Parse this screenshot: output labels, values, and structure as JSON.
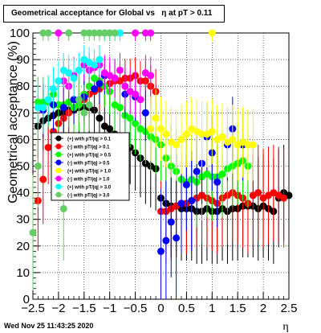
{
  "title": "Geometrical acceptance for Global vs   η at pT > 0.11",
  "footer": "Wed Nov 25 11:43:25 2020",
  "chart_data": {
    "type": "scatter",
    "xlabel": "η",
    "ylabel": "Geometrical acceptance (%)",
    "xlim": [
      -2.5,
      2.5
    ],
    "ylim": [
      0,
      100
    ],
    "xticks": [
      "−2.5",
      "−2",
      "−1.5",
      "−1",
      "−0.5",
      "0",
      "0.5",
      "1",
      "1.5",
      "2",
      "2.5"
    ],
    "yticks": [
      "0",
      "10",
      "20",
      "30",
      "40",
      "50",
      "60",
      "70",
      "80",
      "90",
      "100"
    ],
    "grid": true,
    "legend_position": "left-middle",
    "series": [
      {
        "name": "(+) with pT/|q| > 0.1",
        "color": "#000000",
        "points": [
          [
            -2.4,
            65
          ],
          [
            -2.3,
            67
          ],
          [
            -2.2,
            68
          ],
          [
            -2.1,
            69
          ],
          [
            -2.0,
            70
          ],
          [
            -1.9,
            70
          ],
          [
            -1.8,
            71
          ],
          [
            -1.7,
            71
          ],
          [
            -1.6,
            72
          ],
          [
            -1.5,
            72
          ],
          [
            -1.4,
            72
          ],
          [
            -1.3,
            71
          ],
          [
            -1.2,
            68
          ],
          [
            -1.1,
            65
          ],
          [
            -1.0,
            64
          ],
          [
            -0.9,
            62
          ],
          [
            -0.8,
            60
          ],
          [
            -0.7,
            58
          ],
          [
            -0.6,
            57
          ],
          [
            -0.5,
            55
          ],
          [
            -0.4,
            53
          ],
          [
            -0.3,
            51
          ],
          [
            -0.2,
            50
          ],
          [
            -0.1,
            49
          ],
          [
            0.0,
            38
          ],
          [
            0.1,
            36
          ],
          [
            0.2,
            35
          ],
          [
            0.3,
            35
          ],
          [
            0.4,
            34
          ],
          [
            0.5,
            34
          ],
          [
            0.6,
            34
          ],
          [
            0.7,
            33
          ],
          [
            0.8,
            33
          ],
          [
            0.9,
            34
          ],
          [
            1.0,
            33
          ],
          [
            1.1,
            33
          ],
          [
            1.2,
            34
          ],
          [
            1.3,
            33
          ],
          [
            1.4,
            34
          ],
          [
            1.5,
            34
          ],
          [
            1.6,
            35
          ],
          [
            1.7,
            35
          ],
          [
            1.8,
            35
          ],
          [
            1.9,
            34
          ],
          [
            2.0,
            35
          ],
          [
            2.1,
            34
          ],
          [
            2.2,
            33
          ],
          [
            2.3,
            38
          ],
          [
            2.4,
            40
          ],
          [
            2.5,
            39
          ]
        ]
      },
      {
        "name": "(-) with pT/|q| > 0.1",
        "color": "#ff0000",
        "points": [
          [
            -2.4,
            37
          ],
          [
            -2.3,
            45
          ],
          [
            -2.2,
            57
          ],
          [
            -2.1,
            63
          ],
          [
            -2.0,
            66
          ],
          [
            -1.9,
            68
          ],
          [
            -1.8,
            70
          ],
          [
            -1.7,
            72
          ],
          [
            -1.6,
            74
          ],
          [
            -1.5,
            75
          ],
          [
            -1.4,
            77
          ],
          [
            -1.3,
            78
          ],
          [
            -1.2,
            79
          ],
          [
            -1.1,
            80
          ],
          [
            -1.0,
            81
          ],
          [
            -0.9,
            82
          ],
          [
            -0.8,
            82
          ],
          [
            -0.7,
            83
          ],
          [
            -0.6,
            83
          ],
          [
            -0.5,
            84
          ],
          [
            -0.4,
            82
          ],
          [
            -0.3,
            82
          ],
          [
            -0.2,
            80
          ],
          [
            -0.1,
            78
          ],
          [
            0.0,
            33
          ],
          [
            0.1,
            33
          ],
          [
            0.2,
            34
          ],
          [
            0.3,
            35
          ],
          [
            0.4,
            36
          ],
          [
            0.5,
            36
          ],
          [
            0.6,
            37
          ],
          [
            0.7,
            38
          ],
          [
            0.8,
            39
          ],
          [
            0.9,
            38
          ],
          [
            1.0,
            37
          ],
          [
            1.1,
            36
          ],
          [
            1.2,
            38
          ],
          [
            1.3,
            39
          ],
          [
            1.4,
            40
          ],
          [
            1.5,
            39
          ],
          [
            1.6,
            38
          ],
          [
            1.7,
            36
          ],
          [
            1.8,
            39
          ],
          [
            1.9,
            40
          ],
          [
            2.0,
            38
          ],
          [
            2.1,
            39
          ],
          [
            2.2,
            40
          ],
          [
            2.3,
            39
          ],
          [
            2.4,
            38
          ]
        ]
      },
      {
        "name": "(+) with pT/|q| > 0.5",
        "color": "#00ff00",
        "points": [
          [
            -2.4,
            74
          ],
          [
            -2.3,
            74
          ],
          [
            -2.2,
            74
          ],
          [
            -2.1,
            77
          ],
          [
            -2.0,
            73
          ],
          [
            -1.9,
            73
          ],
          [
            -1.8,
            74
          ],
          [
            -1.7,
            72
          ],
          [
            -1.6,
            73
          ],
          [
            -1.5,
            77
          ],
          [
            -1.4,
            80
          ],
          [
            -1.3,
            83
          ],
          [
            -1.2,
            82
          ],
          [
            -1.1,
            80
          ],
          [
            -1.0,
            78
          ],
          [
            -0.9,
            73
          ],
          [
            -0.8,
            72
          ],
          [
            -0.7,
            69
          ],
          [
            -0.6,
            68
          ],
          [
            -0.5,
            66
          ],
          [
            -0.4,
            64
          ],
          [
            -0.3,
            63
          ],
          [
            -0.2,
            61
          ],
          [
            -0.1,
            60
          ],
          [
            0.0,
            58
          ],
          [
            0.1,
            53
          ],
          [
            0.2,
            50
          ],
          [
            0.3,
            48
          ],
          [
            0.4,
            45
          ],
          [
            0.5,
            44
          ],
          [
            0.6,
            45
          ],
          [
            0.7,
            44
          ],
          [
            0.8,
            46
          ],
          [
            0.9,
            47
          ],
          [
            1.0,
            46
          ],
          [
            1.1,
            46
          ],
          [
            1.2,
            47
          ],
          [
            1.3,
            49
          ],
          [
            1.4,
            50
          ],
          [
            1.5,
            51
          ],
          [
            1.6,
            52
          ],
          [
            1.7,
            50
          ]
        ]
      },
      {
        "name": "(-) with pT/|q| > 0.5",
        "color": "#0000ff",
        "points": [
          [
            -2.3,
            71
          ],
          [
            -2.1,
            73
          ],
          [
            -1.9,
            72
          ],
          [
            -1.7,
            75
          ],
          [
            -1.5,
            76
          ],
          [
            -1.3,
            79
          ],
          [
            -1.2,
            81
          ],
          [
            -1.1,
            84
          ],
          [
            -0.9,
            83
          ],
          [
            -0.7,
            77
          ],
          [
            -0.5,
            76
          ],
          [
            -0.3,
            70
          ],
          [
            0.0,
            18
          ],
          [
            0.1,
            22
          ],
          [
            0.2,
            29
          ],
          [
            0.3,
            23
          ],
          [
            0.4,
            36
          ],
          [
            0.5,
            43
          ],
          [
            0.6,
            37
          ],
          [
            0.7,
            48
          ],
          [
            0.8,
            51
          ],
          [
            0.9,
            61
          ],
          [
            1.0,
            55
          ],
          [
            1.1,
            44
          ],
          [
            1.3,
            58
          ],
          [
            1.4,
            64
          ],
          [
            1.6,
            58
          ]
        ]
      },
      {
        "name": "(+) with pT/|q| > 1.0",
        "color": "#ffff00",
        "points": [
          [
            -0.2,
            64
          ],
          [
            -0.1,
            68
          ],
          [
            0.0,
            64
          ],
          [
            0.1,
            62
          ],
          [
            0.2,
            59
          ],
          [
            0.3,
            58
          ],
          [
            0.4,
            60
          ],
          [
            0.5,
            62
          ],
          [
            0.6,
            64
          ],
          [
            0.7,
            63
          ],
          [
            0.8,
            62
          ],
          [
            0.9,
            62
          ],
          [
            1.0,
            63
          ],
          [
            1.1,
            60
          ],
          [
            1.2,
            61
          ],
          [
            1.3,
            59
          ],
          [
            1.4,
            60
          ],
          [
            1.5,
            58
          ],
          [
            1.6,
            59
          ],
          [
            1.7,
            58
          ],
          [
            1.8,
            58
          ],
          [
            1.0,
            100
          ]
        ]
      },
      {
        "name": "(-) with pT/|q| > 1.0",
        "color": "#ff00ff",
        "points": [
          [
            -2.0,
            100
          ],
          [
            -1.9,
            82
          ],
          [
            -1.8,
            80
          ],
          [
            -1.7,
            84
          ],
          [
            -1.6,
            86
          ],
          [
            -1.5,
            88
          ],
          [
            -1.4,
            86
          ],
          [
            -1.3,
            87
          ],
          [
            -1.2,
            88
          ],
          [
            -1.1,
            85
          ],
          [
            -1.0,
            84
          ],
          [
            -0.9,
            83
          ],
          [
            -0.8,
            86
          ],
          [
            -0.7,
            80
          ],
          [
            -0.6,
            78
          ],
          [
            -0.5,
            77
          ],
          [
            -0.4,
            75
          ],
          [
            -0.3,
            85
          ],
          [
            -0.2,
            84
          ],
          [
            -0.5,
            100
          ],
          [
            -0.3,
            100
          ],
          [
            -0.2,
            100
          ]
        ]
      },
      {
        "name": "(+) with pT/|q| > 3.0",
        "color": "#00ffff",
        "points": [
          [
            -2.4,
            72
          ],
          [
            -2.3,
            72
          ],
          [
            -2.2,
            75
          ],
          [
            -2.1,
            79
          ],
          [
            -2.0,
            82
          ],
          [
            -1.9,
            86
          ],
          [
            -1.8,
            85
          ],
          [
            -1.7,
            83
          ],
          [
            -1.6,
            86
          ],
          [
            -1.5,
            90
          ],
          [
            -1.4,
            89
          ],
          [
            -1.3,
            88
          ],
          [
            -1.2,
            90
          ],
          [
            -1.1,
            100
          ],
          [
            -1.0,
            100
          ],
          [
            -0.9,
            100
          ],
          [
            -0.8,
            100
          ]
        ]
      },
      {
        "name": "(-) with pT/|q| > 3.0",
        "color": "#66cc66",
        "points": [
          [
            -2.5,
            25
          ],
          [
            -2.4,
            50
          ],
          [
            -1.9,
            34
          ],
          [
            -1.6,
            75
          ],
          [
            -1.5,
            70
          ],
          [
            -1.4,
            73
          ],
          [
            -2.3,
            100
          ],
          [
            -2.2,
            100
          ],
          [
            -1.5,
            100
          ],
          [
            -1.4,
            100
          ],
          [
            -1.3,
            100
          ],
          [
            -1.2,
            100
          ],
          [
            -1.1,
            100
          ],
          [
            -1.0,
            100
          ],
          [
            -0.9,
            100
          ],
          [
            -1.8,
            100
          ]
        ]
      }
    ]
  }
}
